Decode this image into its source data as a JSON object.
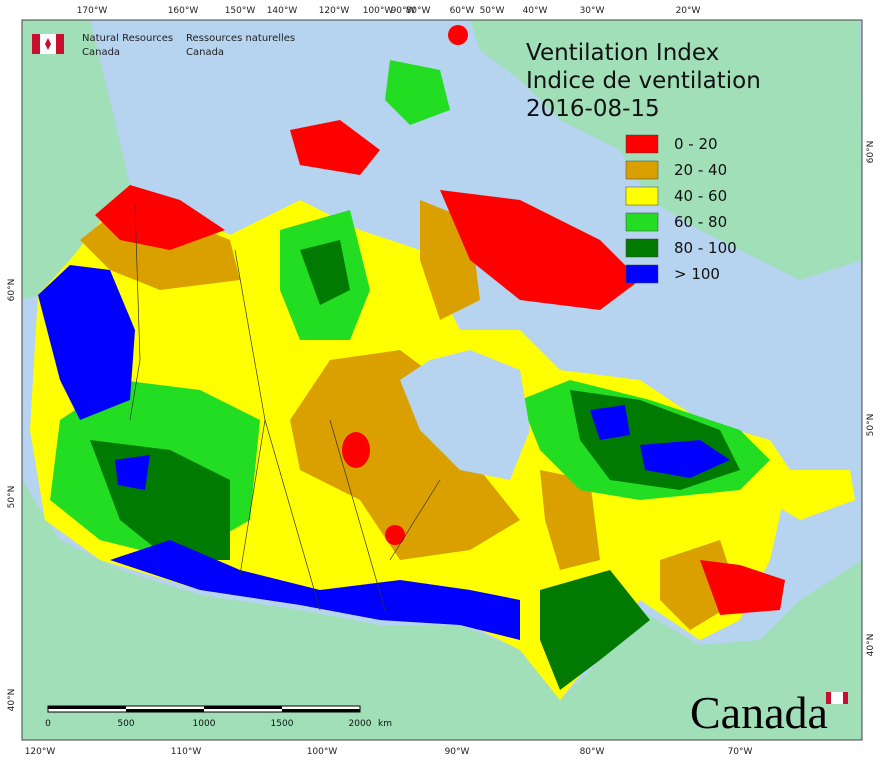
{
  "header": {
    "title_en": "Ventilation Index",
    "title_fr": "Indice de ventilation",
    "date": "2016-08-15"
  },
  "agency": {
    "en": [
      "Natural Resources",
      "Canada"
    ],
    "fr": [
      "Ressources naturelles",
      "Canada"
    ]
  },
  "legend": [
    {
      "label": "0 - 20",
      "color": "#ff0000"
    },
    {
      "label": "20 - 40",
      "color": "#daa000"
    },
    {
      "label": "40 - 60",
      "color": "#ffff00"
    },
    {
      "label": "60 - 80",
      "color": "#22dd22"
    },
    {
      "label": "80 - 100",
      "color": "#007a00"
    },
    {
      "label": "> 100",
      "color": "#0000ff"
    }
  ],
  "top_longitudes": [
    "170°W",
    "160°W",
    "150°W",
    "140°W",
    "120°W",
    "100°W",
    "90°W",
    "80°W",
    "60°W",
    "50°W",
    "40°W",
    "30°W",
    "20°W"
  ],
  "bottom_longitudes": [
    "120°W",
    "110°W",
    "100°W",
    "90°W",
    "80°W",
    "70°W"
  ],
  "left_latitudes": [
    "60°N",
    "50°N",
    "40°N"
  ],
  "right_latitudes": [
    "60°N",
    "50°N",
    "40°N"
  ],
  "scale_bar": {
    "labels": [
      "0",
      "500",
      "1000",
      "1500",
      "2000"
    ],
    "unit": "km"
  },
  "wordmark": "Canada"
}
